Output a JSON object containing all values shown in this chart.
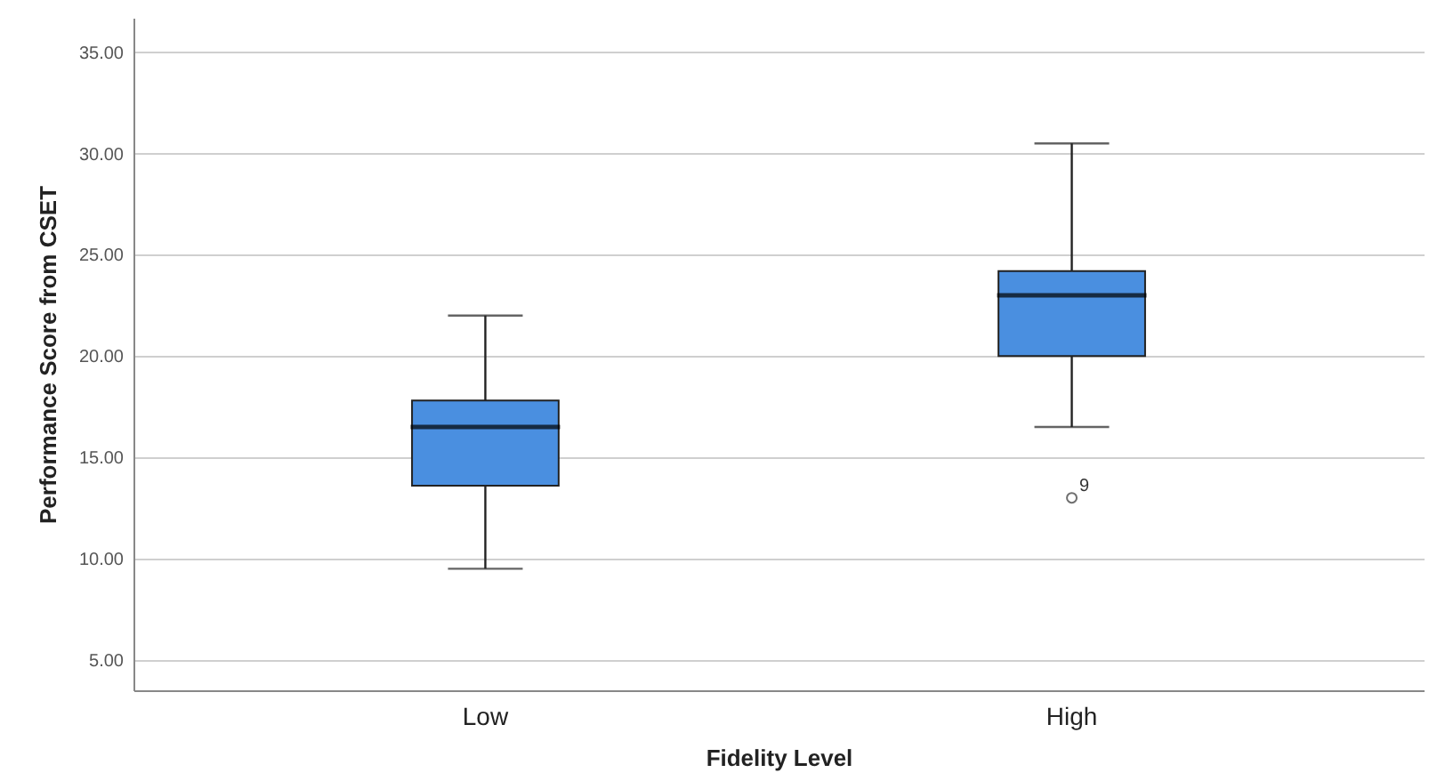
{
  "chart_data": {
    "type": "box",
    "xlabel": "Fidelity Level",
    "ylabel": "Performance Score from CSET",
    "categories": [
      "Low",
      "High"
    ],
    "boxes": [
      {
        "low": 9.5,
        "q1": 13.6,
        "median": 16.5,
        "q3": 17.8,
        "high": 22.0
      },
      {
        "low": 16.5,
        "q1": 20.0,
        "median": 23.0,
        "q3": 24.2,
        "high": 30.5,
        "outliers": [
          13.0
        ]
      }
    ],
    "color": "#4a8fe0",
    "ylim": [
      3.5,
      36.7
    ],
    "yticks": [
      {
        "value": 5,
        "label": "5.00"
      },
      {
        "value": 10,
        "label": "10.00"
      },
      {
        "value": 15,
        "label": "15.00"
      },
      {
        "value": 20,
        "label": "20.00"
      },
      {
        "value": 25,
        "label": "25.00"
      },
      {
        "value": 30,
        "label": "30.00"
      },
      {
        "value": 35,
        "label": "35.00"
      }
    ],
    "grid": "y",
    "annotations": [
      "9"
    ]
  }
}
